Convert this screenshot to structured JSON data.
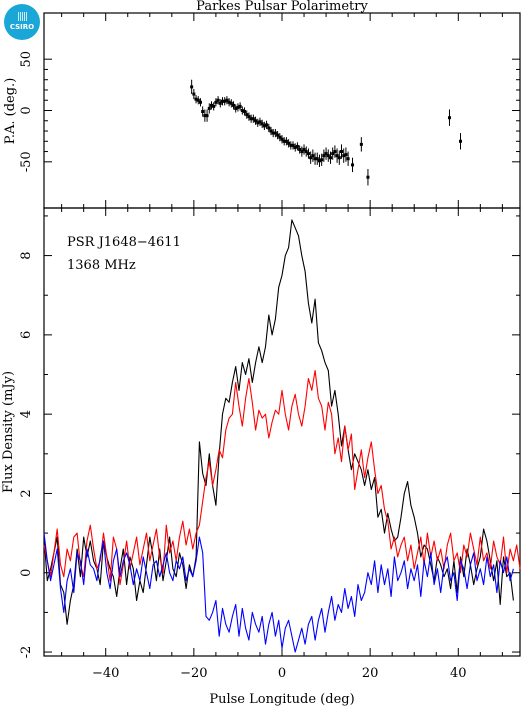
{
  "logo": {
    "text": "CSIRO"
  },
  "chart_data": [
    {
      "type": "scatter",
      "title": "Parkes Pulsar Polarimetry",
      "xlabel": "",
      "ylabel": "P.A. (deg.)",
      "xlim": [
        -54,
        54
      ],
      "ylim": [
        -95,
        95
      ],
      "yticks": [
        -50,
        0,
        50
      ],
      "xticks": [
        -40,
        -20,
        0,
        20,
        40
      ],
      "series": [
        {
          "x": [
            -20.5,
            -20.0,
            -19.5,
            -19.0,
            -18.5,
            -18.0,
            -17.5,
            -17.0,
            -16.5,
            -16.0,
            -15.5,
            -15.0,
            -14.5,
            -14.0,
            -13.5,
            -13.0,
            -12.5,
            -12.0,
            -11.5,
            -11.0,
            -10.5,
            -10.0,
            -9.5,
            -9.0,
            -8.5,
            -8.0,
            -7.5,
            -7.0,
            -6.5,
            -6.0,
            -5.5,
            -5.0,
            -4.5,
            -4.0,
            -3.5,
            -3.0,
            -2.5,
            -2.0,
            -1.5,
            -1.0,
            -0.5,
            0.0,
            0.5,
            1.0,
            1.5,
            2.0,
            2.5,
            3.0,
            3.5,
            4.0,
            4.5,
            5.0,
            5.5,
            6.0,
            6.5,
            7.0,
            7.5,
            8.0,
            8.5,
            9.0,
            9.5,
            10.0,
            10.5,
            11.0,
            11.5,
            12.0,
            12.5,
            13.0,
            13.5,
            14.0,
            14.5,
            15.0,
            16.0,
            18.0,
            19.5,
            38.0,
            40.5
          ],
          "y": [
            23,
            16,
            11,
            10,
            8,
            -1,
            -5,
            -5,
            2,
            5,
            4,
            8,
            10,
            7,
            9,
            9,
            10,
            8,
            7,
            5,
            2,
            3,
            4,
            0,
            -1,
            -4,
            -6,
            -8,
            -8,
            -10,
            -12,
            -11,
            -13,
            -15,
            -14,
            -17,
            -20,
            -22,
            -22,
            -24,
            -26,
            -28,
            -30,
            -30,
            -32,
            -34,
            -34,
            -36,
            -35,
            -38,
            -40,
            -38,
            -40,
            -42,
            -46,
            -44,
            -47,
            -47,
            -49,
            -48,
            -44,
            -42,
            -44,
            -46,
            -42,
            -40,
            -44,
            -46,
            -40,
            -44,
            -43,
            -47,
            -53,
            -33,
            -65,
            -7,
            -30
          ],
          "err": [
            7,
            5,
            4,
            4,
            4,
            5,
            6,
            6,
            5,
            4,
            4,
            4,
            4,
            4,
            4,
            4,
            4,
            4,
            4,
            4,
            4,
            4,
            4,
            4,
            4,
            4,
            4,
            4,
            4,
            4,
            4,
            4,
            4,
            4,
            4,
            4,
            4,
            4,
            4,
            4,
            4,
            4,
            4,
            4,
            4,
            4,
            4,
            4,
            4,
            4,
            5,
            5,
            5,
            5,
            6,
            6,
            6,
            6,
            6,
            6,
            6,
            6,
            6,
            6,
            6,
            6,
            7,
            7,
            7,
            7,
            7,
            7,
            7,
            7,
            8,
            8,
            8
          ]
        }
      ]
    },
    {
      "type": "line",
      "title": "",
      "xlabel": "Pulse Longitude (deg)",
      "ylabel": "Flux Density (mJy)",
      "xlim": [
        -54,
        54
      ],
      "ylim": [
        -2.1,
        9.2
      ],
      "xticks": [
        -40,
        -20,
        0,
        20,
        40
      ],
      "yticks": [
        -2,
        0,
        2,
        4,
        6,
        8
      ],
      "annotations": [
        "PSR J1648−4611",
        "1368 MHz"
      ],
      "x_start": -54,
      "x_step": 0.75,
      "series": [
        {
          "color": "#000000",
          "values": [
            0.9,
            -0.2,
            0.1,
            0.5,
            0.9,
            -0.3,
            -0.5,
            -1.3,
            -0.7,
            -0.3,
            0.6,
            -0.1,
            0.9,
            0.4,
            0.8,
            0.3,
            0.1,
            -0.3,
            0.8,
            0.4,
            0.1,
            -0.1,
            -0.6,
            0.1,
            0.6,
            -0.3,
            0.4,
            0.1,
            -0.7,
            -0.2,
            -0.5,
            0.2,
            0.9,
            0.4,
            -0.2,
            0.6,
            -0.2,
            0.3,
            0.9,
            0.1,
            -0.1,
            0.5,
            0.2,
            -0.4,
            0.2,
            -0.1,
            0.4,
            3.3,
            2.5,
            2.2,
            3.0,
            2.2,
            1.7,
            3.0,
            4.0,
            4.4,
            4.3,
            4.8,
            5.2,
            4.6,
            5.3,
            5.0,
            5.4,
            4.8,
            5.3,
            5.7,
            5.3,
            5.7,
            6.5,
            6.0,
            6.4,
            7.2,
            7.5,
            8.0,
            8.2,
            8.9,
            8.7,
            8.5,
            8.0,
            7.6,
            6.8,
            6.3,
            6.9,
            5.8,
            5.6,
            5.3,
            5.1,
            4.2,
            4.6,
            4.0,
            3.2,
            3.7,
            3.1,
            2.6,
            3.0,
            2.8,
            2.6,
            2.2,
            2.6,
            2.1,
            2.4,
            1.4,
            1.6,
            1.0,
            1.5,
            1.1,
            0.8,
            0.9,
            1.4,
            2.0,
            2.3,
            1.7,
            1.4,
            1.0,
            0.4,
            0.7,
            0.6,
            0.2,
            -0.2,
            0.4,
            0.2,
            -0.1,
            0.1,
            -0.4,
            0.3,
            -0.5,
            0.4,
            -0.1,
            0.6,
            0.2,
            -0.3,
            0.1,
            0.4,
            1.1,
            0.8,
            0.3,
            -0.2,
            0.3,
            -0.8,
            0.4,
            -0.1,
            0.0,
            -0.7
          ]
        },
        {
          "color": "#ff0000",
          "values": [
            0.7,
            0.3,
            -0.1,
            0.5,
            1.1,
            0.2,
            -0.1,
            0.6,
            0.3,
            0.9,
            1.0,
            0.2,
            -0.1,
            0.8,
            1.2,
            0.6,
            0.1,
            0.3,
            1.0,
            0.4,
            -0.2,
            0.9,
            0.6,
            -0.3,
            0.2,
            0.8,
            0.1,
            0.5,
            0.9,
            0.2,
            0.6,
            1.0,
            0.3,
            0.7,
            1.1,
            0.4,
            0.0,
            1.2,
            0.5,
            0.8,
            0.3,
            0.9,
            1.3,
            0.7,
            1.1,
            0.6,
            1.0,
            1.2,
            1.8,
            2.4,
            2.8,
            2.2,
            2.6,
            3.1,
            2.9,
            3.6,
            3.9,
            4.0,
            4.8,
            4.2,
            3.7,
            4.4,
            4.9,
            4.3,
            3.6,
            4.1,
            3.9,
            4.0,
            3.4,
            3.8,
            4.1,
            4.0,
            4.6,
            4.0,
            3.6,
            4.2,
            4.5,
            4.0,
            3.7,
            4.2,
            4.9,
            4.6,
            5.1,
            4.4,
            4.2,
            3.6,
            4.3,
            4.0,
            3.0,
            3.4,
            2.8,
            3.7,
            3.1,
            3.5,
            2.1,
            2.6,
            3.1,
            2.4,
            2.9,
            3.3,
            2.6,
            2.0,
            2.2,
            1.6,
            1.3,
            0.6,
            0.9,
            0.4,
            0.7,
            0.9,
            0.3,
            0.7,
            0.1,
            0.5,
            0.9,
            0.2,
            1.0,
            0.4,
            0.8,
            0.3,
            0.6,
            0.1,
            0.7,
            1.0,
            0.3,
            0.5,
            0.0,
            0.7,
            0.4,
            1.0,
            0.6,
            0.2,
            0.9,
            0.3,
            0.5,
            0.1,
            0.8,
            0.4,
            0.2,
            0.9,
            0.0,
            0.6,
            0.3,
            0.7,
            0.1
          ]
        },
        {
          "color": "#0000ff",
          "values": [
            1.0,
            0.3,
            -0.2,
            0.2,
            0.6,
            -0.4,
            -1.0,
            -0.2,
            0.1,
            -0.5,
            0.5,
            0.3,
            -0.3,
            0.6,
            0.2,
            0.1,
            -0.2,
            0.4,
            0.8,
            0.0,
            -0.4,
            0.3,
            0.6,
            -0.1,
            0.3,
            0.5,
            0.2,
            -0.3,
            0.1,
            -0.2,
            0.4,
            0.0,
            -0.4,
            0.2,
            0.3,
            -0.1,
            0.2,
            0.5,
            0.0,
            -0.2,
            0.3,
            0.1,
            0.4,
            -0.2,
            0.1,
            -0.1,
            0.3,
            0.9,
            0.5,
            -1.1,
            -1.2,
            -1.0,
            -0.7,
            -1.6,
            -0.9,
            -1.3,
            -1.5,
            -1.1,
            -0.8,
            -1.6,
            -0.9,
            -1.4,
            -1.7,
            -1.0,
            -1.3,
            -1.5,
            -1.1,
            -1.8,
            -1.3,
            -1.0,
            -1.6,
            -1.2,
            -1.9,
            -1.4,
            -1.2,
            -1.6,
            -2.0,
            -1.7,
            -1.4,
            -1.8,
            -1.3,
            -1.1,
            -1.7,
            -1.2,
            -0.9,
            -1.5,
            -1.0,
            -0.6,
            -1.2,
            -0.8,
            -1.0,
            -0.4,
            -0.9,
            -0.6,
            -1.1,
            -0.3,
            -0.7,
            -0.5,
            0.0,
            -0.3,
            0.3,
            -0.5,
            0.2,
            -0.3,
            0.1,
            -0.6,
            0.4,
            -0.2,
            0.0,
            0.3,
            -0.4,
            0.1,
            -0.2,
            0.2,
            -0.6,
            0.3,
            -0.1,
            0.5,
            -0.3,
            0.1,
            -0.5,
            0.2,
            0.4,
            -0.2,
            0.0,
            -0.7,
            0.3,
            0.1,
            -0.4,
            0.2,
            0.5,
            -0.2,
            0.1,
            -0.3,
            0.4,
            -0.1,
            0.2,
            -0.5,
            0.3,
            0.0,
            0.4,
            -0.2,
            0.1
          ]
        }
      ]
    }
  ]
}
